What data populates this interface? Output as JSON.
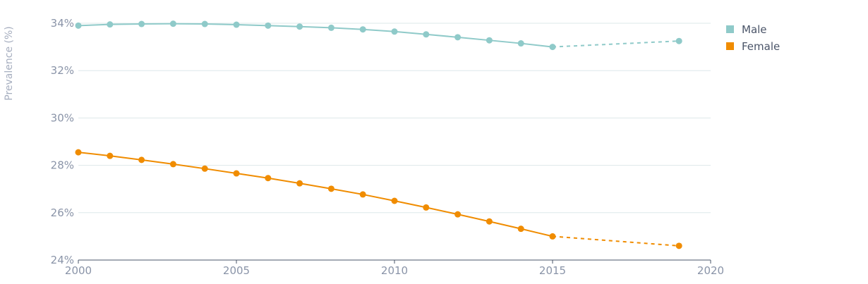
{
  "chart_data": {
    "type": "line",
    "title": "",
    "xlabel": "",
    "ylabel": "Prevalence (%)",
    "xlim": [
      2000,
      2020
    ],
    "ylim": [
      24,
      34
    ],
    "x_ticks": [
      2000,
      2005,
      2010,
      2015,
      2020
    ],
    "y_ticks": [
      24,
      26,
      28,
      30,
      32,
      34
    ],
    "y_tick_suffix": "%",
    "grid": "horizontal",
    "legend_position": "top-right",
    "series": [
      {
        "name": "Male",
        "color": "#8fcac9",
        "x": [
          2000,
          2001,
          2002,
          2003,
          2004,
          2005,
          2006,
          2007,
          2008,
          2009,
          2010,
          2011,
          2012,
          2013,
          2014,
          2015,
          2019
        ],
        "values": [
          33.9,
          33.95,
          33.97,
          33.98,
          33.97,
          33.94,
          33.9,
          33.86,
          33.81,
          33.74,
          33.65,
          33.53,
          33.41,
          33.28,
          33.15,
          33.0,
          33.25
        ],
        "projected_from_index": 15
      },
      {
        "name": "Female",
        "color": "#f08c00",
        "x": [
          2000,
          2001,
          2002,
          2003,
          2004,
          2005,
          2006,
          2007,
          2008,
          2009,
          2010,
          2011,
          2012,
          2013,
          2014,
          2015,
          2019
        ],
        "values": [
          28.55,
          28.4,
          28.23,
          28.05,
          27.86,
          27.66,
          27.46,
          27.24,
          27.01,
          26.77,
          26.5,
          26.22,
          25.93,
          25.63,
          25.32,
          25.0,
          24.6
        ],
        "projected_from_index": 15
      }
    ]
  }
}
